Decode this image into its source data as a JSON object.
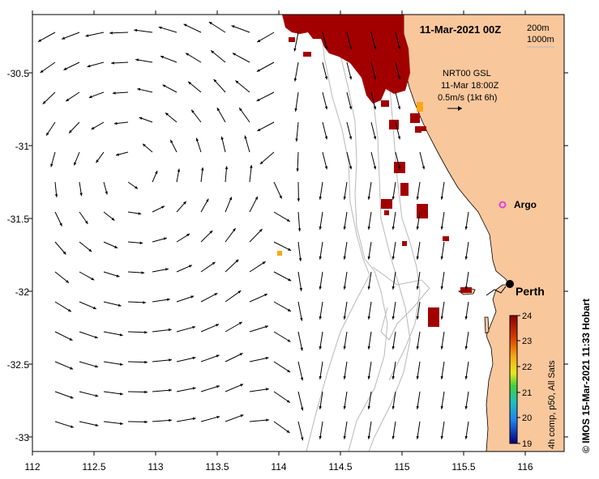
{
  "map": {
    "title": "11-Mar-2021 00Z",
    "depth_legend": [
      "200m",
      "1000m"
    ],
    "current_label": {
      "line1": "NRT00 GSL",
      "line2": "11-Mar 18:00Z",
      "line3": "0.5m/s (1kt 6h)"
    },
    "city_label": "Perth",
    "argo_label": "Argo",
    "credit": "© IMOS 15-Mar-2021 11:33 Hobart",
    "colorbar_title": "4h comp, p50, All Sats",
    "colorbar_ticks": [
      "24",
      "23",
      "22",
      "21",
      "20",
      "19"
    ],
    "x_ticks": [
      "112",
      "112.5",
      "113",
      "113.5",
      "114",
      "114.5",
      "115",
      "115.5",
      "116"
    ],
    "y_ticks": [
      "-30.5",
      "-31",
      "-31.5",
      "-32",
      "-32.5",
      "-33"
    ],
    "colors": {
      "land": "#f9c79c",
      "sst_hot": "#a20000",
      "sst_warm": "#f7a81a",
      "isobath": "#b8b8b8",
      "argo": "#e040e0"
    }
  }
}
